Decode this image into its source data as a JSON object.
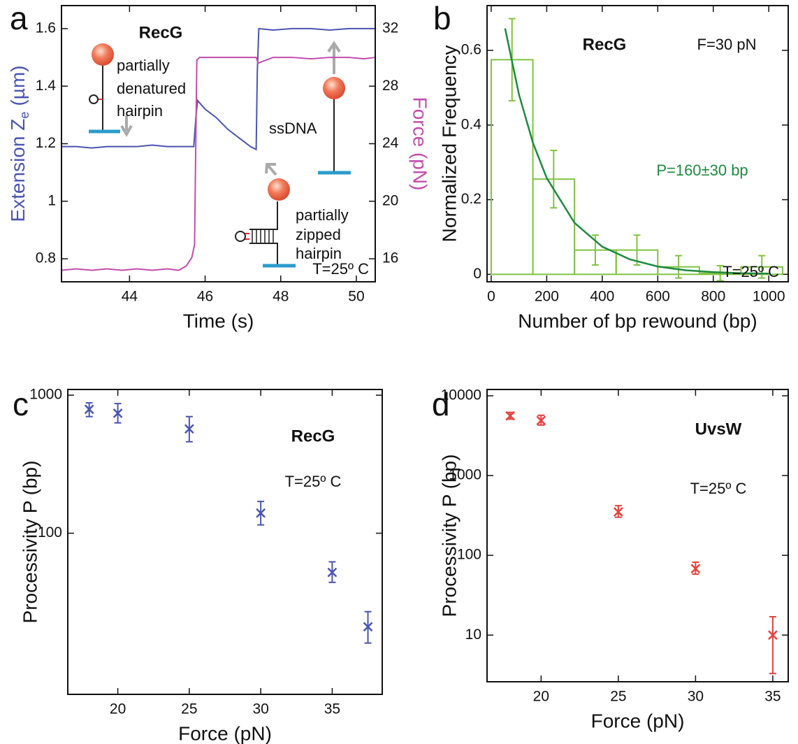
{
  "chart_data": [
    {
      "type": "line",
      "panel_label": "a",
      "x_label": "Time (s)",
      "y_label": "Extension Z",
      "y_label_subscript": "e",
      "y_label_units": "(µm)",
      "y2_label": "Force (pN)",
      "xlim": [
        42.2,
        50.5
      ],
      "xticks": [
        44,
        46,
        48,
        50
      ],
      "ylim": [
        0.72,
        1.68
      ],
      "yticks": [
        0.8,
        1,
        1.2,
        1.4,
        1.6
      ],
      "y2lim": [
        14.4,
        33.6
      ],
      "y2ticks": [
        16,
        20,
        24,
        28,
        32
      ],
      "annotations": [
        "RecG",
        "partially",
        "denatured",
        "hairpin",
        "ssDNA",
        "partially",
        "zipped",
        "hairpin",
        "T=25º C"
      ],
      "series": [
        {
          "color": "#4a55b0",
          "x": [
            42.2,
            42.6,
            43,
            43.4,
            43.8,
            44.2,
            44.6,
            45,
            45.4,
            45.7,
            45.76,
            45.8,
            46,
            46.3,
            46.6,
            46.9,
            47.2,
            47.35,
            47.38,
            47.42,
            47.8,
            48.3,
            48.8,
            49.3,
            49.8,
            50.2,
            50.5
          ],
          "values": [
            1.19,
            1.19,
            1.185,
            1.19,
            1.19,
            1.19,
            1.195,
            1.19,
            1.19,
            1.19,
            1.3,
            1.35,
            1.32,
            1.29,
            1.25,
            1.22,
            1.19,
            1.18,
            1.45,
            1.6,
            1.595,
            1.6,
            1.6,
            1.595,
            1.6,
            1.6,
            1.6
          ]
        },
        {
          "color": "#c24cae",
          "axis": "y2",
          "x": [
            42.2,
            42.6,
            43,
            43.4,
            43.8,
            44.2,
            44.6,
            45,
            45.3,
            45.5,
            45.65,
            45.72,
            45.78,
            45.85,
            46.2,
            46.6,
            47,
            47.35,
            47.4,
            47.8,
            48.3,
            48.8,
            49.3,
            49.8,
            50.2,
            50.5
          ],
          "values": [
            15.2,
            15.3,
            15.2,
            15.3,
            15.2,
            15.3,
            15.2,
            15.3,
            15.2,
            15.5,
            16.1,
            17,
            29.8,
            30,
            30,
            30,
            30,
            30,
            29.6,
            30,
            30,
            29.9,
            30,
            30,
            29.9,
            30
          ]
        }
      ]
    },
    {
      "type": "histogram",
      "panel_label": "b",
      "x_label": "Number of bp rewound (bp)",
      "y_label": "Normalized Frequency",
      "xlim": [
        -15,
        1070
      ],
      "xticks": [
        0,
        200,
        400,
        600,
        800,
        1000
      ],
      "ylim": [
        -0.02,
        0.72
      ],
      "yticks": [
        0,
        0.2,
        0.4,
        0.6
      ],
      "color": "#80c342",
      "bins": [
        0,
        150,
        300,
        450,
        600,
        750,
        900,
        1050
      ],
      "values": [
        0.575,
        0.255,
        0.065,
        0.065,
        0.02,
        0.003,
        0.02
      ],
      "errors": [
        0.11,
        0.077,
        0.04,
        0.04,
        0.03,
        0.02,
        0.03
      ],
      "fit": {
        "color": "#1e8a3f",
        "x": [
          50,
          100,
          150,
          200,
          300,
          400,
          500,
          600,
          700,
          800,
          900,
          1000
        ],
        "values": [
          0.659,
          0.482,
          0.353,
          0.258,
          0.138,
          0.074,
          0.04,
          0.021,
          0.011,
          0.006,
          0.003,
          0.002
        ]
      },
      "annotations": [
        "RecG",
        "F=30 pN",
        "P=160±30 bp",
        "T=25º C"
      ]
    },
    {
      "type": "scatter",
      "panel_label": "c",
      "x_label": "Force (pN)",
      "y_label": "Processivity P (bp)",
      "log_y": true,
      "xlim": [
        16.5,
        38.5
      ],
      "xticks": [
        20,
        25,
        30,
        35
      ],
      "ylim": [
        6.8,
        1100
      ],
      "yticks": [
        100,
        1000
      ],
      "color": "#4a55b0",
      "x": [
        18,
        20,
        25,
        30,
        35,
        37.5
      ],
      "values": [
        790,
        740,
        570,
        140,
        52,
        21
      ],
      "error_low": [
        700,
        630,
        460,
        115,
        44,
        16
      ],
      "error_high": [
        880,
        870,
        700,
        170,
        62,
        27
      ],
      "annotations": [
        "RecG",
        "T=25º C"
      ]
    },
    {
      "type": "scatter",
      "panel_label": "d",
      "x_label": "Force (pN)",
      "y_label": "Processivity P (bp)",
      "log_y": true,
      "xlim": [
        16.5,
        36
      ],
      "xticks": [
        20,
        25,
        30,
        35
      ],
      "ylim": [
        2.6,
        12000
      ],
      "yticks": [
        10,
        100,
        1000,
        10000
      ],
      "color": "#e8413c",
      "x": [
        18,
        20,
        25,
        30,
        35
      ],
      "values": [
        5600,
        4900,
        350,
        68,
        10
      ],
      "error_low": [
        5100,
        4300,
        300,
        58,
        3.3
      ],
      "error_high": [
        6200,
        5700,
        420,
        82,
        17
      ],
      "annotations": [
        "UvsW",
        "T=25º C"
      ]
    }
  ]
}
